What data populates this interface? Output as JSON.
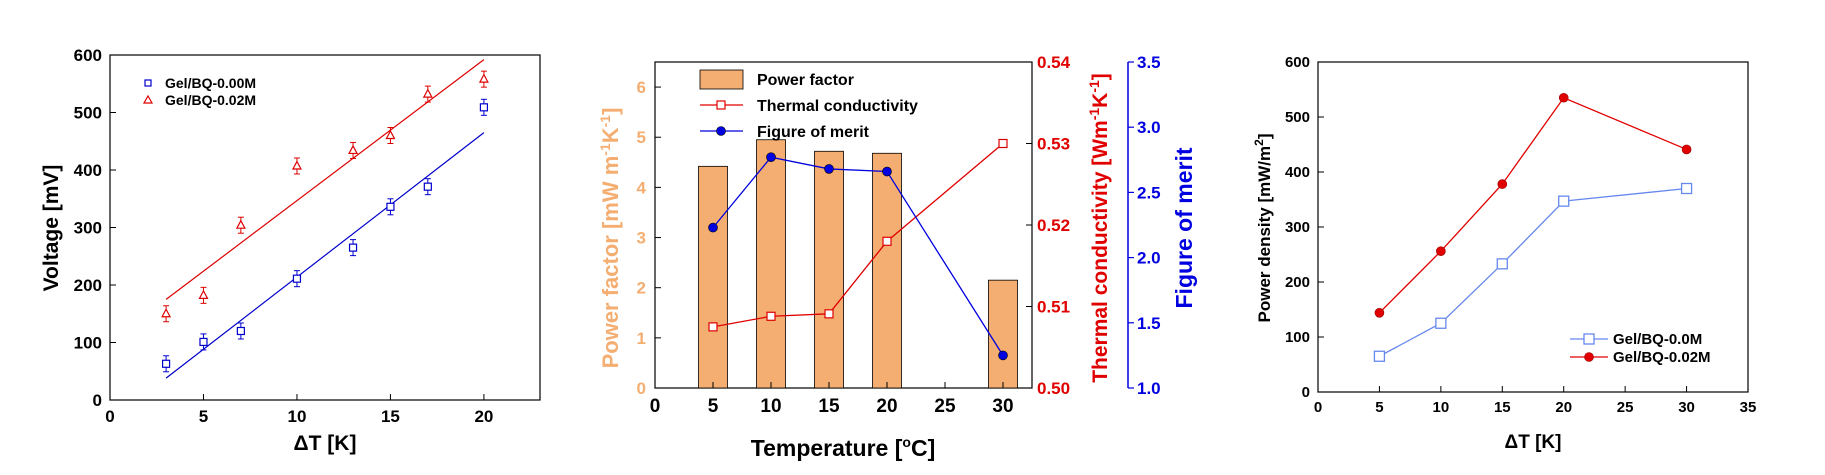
{
  "chart_data": [
    {
      "type": "scatter",
      "xlabel": "ΔT [K]",
      "ylabel": "Voltage [mV]",
      "xlim": [
        0,
        23
      ],
      "ylim": [
        0,
        600
      ],
      "xticks": [
        0,
        5,
        10,
        15,
        20
      ],
      "yticks": [
        0,
        100,
        200,
        300,
        400,
        500,
        600
      ],
      "legend_position": "top-left",
      "series": [
        {
          "name": "Gel/BQ-0.00M",
          "color": "#0000cc",
          "marker": "square-open",
          "x": [
            3,
            5,
            7,
            10,
            13,
            15,
            17,
            20
          ],
          "y": [
            63,
            101,
            120,
            211,
            265,
            336,
            371,
            509
          ],
          "fit": [
            [
              3,
              38
            ],
            [
              20,
              465
            ]
          ]
        },
        {
          "name": "Gel/BQ-0.02M",
          "color": "#dd0000",
          "marker": "triangle-open",
          "x": [
            3,
            5,
            7,
            10,
            13,
            15,
            17,
            20
          ],
          "y": [
            150,
            182,
            304,
            407,
            434,
            460,
            532,
            558
          ],
          "fit": [
            [
              3,
              175
            ],
            [
              20,
              592
            ]
          ]
        }
      ]
    },
    {
      "type": "bar",
      "xlabel": "Temperature [",
      "xlabel_sup": "o",
      "xlabel_suffix": "C]",
      "y_left_label": "Power factor [mW m",
      "y_left_sup1": "-1",
      "y_left_mid": "K",
      "y_left_sup2": "-1",
      "y_left_end": "]",
      "y_right1_label": "Thermal conductivity [Wm",
      "y_right1_sup1": "-1",
      "y_right1_mid": "K",
      "y_right1_sup2": "-1",
      "y_right1_end": "]",
      "y_right2_label": "Figure of merit",
      "xlim": [
        0,
        32.5
      ],
      "xticks": [
        0,
        5,
        10,
        15,
        20,
        25,
        30
      ],
      "ylim_left": [
        0,
        6.5
      ],
      "yticks_left": [
        0,
        1,
        2,
        3,
        4,
        5,
        6
      ],
      "ylim_right1": [
        0.5,
        0.54
      ],
      "yticks_right1": [
        "0.50",
        "0.51",
        "0.52",
        "0.53",
        "0.54"
      ],
      "ylim_right2": [
        1.0,
        3.5
      ],
      "yticks_right2": [
        "1.0",
        "1.5",
        "2.0",
        "2.5",
        "3.0",
        "3.5"
      ],
      "legend_position": "top-left",
      "colors": {
        "bar": "#f4ae72",
        "thermal": "#e00000",
        "merit": "#0000e0"
      },
      "categories": [
        5,
        10,
        15,
        20,
        30
      ],
      "series": [
        {
          "name": "Power factor",
          "axis": "left",
          "values": [
            4.42,
            4.95,
            4.72,
            4.68,
            2.15
          ]
        },
        {
          "name": "Thermal conductivity",
          "axis": "right1",
          "values": [
            0.5075,
            0.5088,
            0.5091,
            0.518,
            0.53
          ]
        },
        {
          "name": "Figure of merit",
          "axis": "right2",
          "values": [
            2.23,
            2.77,
            2.68,
            2.66,
            1.25
          ]
        }
      ]
    },
    {
      "type": "line",
      "xlabel": "ΔT [K]",
      "ylabel": "Power density [mW/m",
      "ylabel_sup": "2",
      "ylabel_end": "]",
      "xlim": [
        0,
        35
      ],
      "ylim": [
        0,
        600
      ],
      "xticks": [
        0,
        5,
        10,
        15,
        20,
        25,
        30,
        35
      ],
      "yticks": [
        0,
        100,
        200,
        300,
        400,
        500,
        600
      ],
      "legend_position": "bottom-right",
      "series": [
        {
          "name": "Gel/BQ-0.0M",
          "color": "#6688ee",
          "marker": "square-open",
          "x": [
            5,
            10,
            15,
            20,
            30
          ],
          "y": [
            65,
            125,
            233,
            347,
            370
          ]
        },
        {
          "name": "Gel/BQ-0.02M",
          "color": "#e00000",
          "marker": "circle-filled",
          "x": [
            5,
            10,
            15,
            20,
            30
          ],
          "y": [
            144,
            256,
            378,
            535,
            441
          ]
        }
      ]
    }
  ]
}
